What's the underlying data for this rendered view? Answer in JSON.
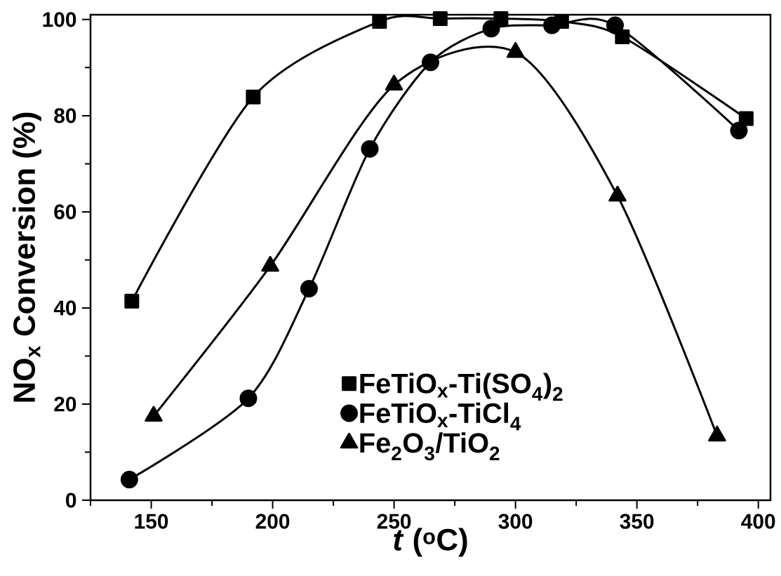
{
  "chart_data": {
    "type": "line",
    "xlabel": "*t* ($^{o}$C)",
    "ylabel": "NO$_{x}$ Conversion (%)",
    "xlim": [
      125,
      405
    ],
    "ylim": [
      0,
      101
    ],
    "xticks": [
      150,
      200,
      250,
      300,
      350,
      400
    ],
    "yticks": [
      0,
      20,
      40,
      60,
      80,
      100
    ],
    "legend": "bottom right",
    "grid": false,
    "line_style": "solid",
    "series": [
      {
        "name": "FeTiO$_{x}$-Ti(SO$_{4}$)$_{2}$",
        "color": "#000000",
        "marker": "square",
        "x": [
          142,
          192,
          244,
          269,
          294,
          319,
          344,
          395
        ],
        "values": [
          41.4,
          83.9,
          99.6,
          100.2,
          100.2,
          99.6,
          96.4,
          79.4
        ]
      },
      {
        "name": "FeTiO$_{x}$-TiCl$_{4}$",
        "color": "#000000",
        "marker": "circle",
        "x": [
          141,
          190,
          215,
          240,
          265,
          290,
          315,
          341,
          392
        ],
        "values": [
          4.3,
          21.2,
          44.0,
          73.1,
          91.1,
          98.1,
          98.8,
          98.8,
          76.9
        ]
      },
      {
        "name": "Fe$_{2}$O$_{3}$/TiO$_{2}$",
        "color": "#000000",
        "marker": "triangle",
        "x": [
          151,
          199,
          250,
          300,
          342,
          383
        ],
        "values": [
          17.5,
          48.7,
          86.4,
          93.2,
          63.3,
          13.4
        ]
      }
    ]
  }
}
